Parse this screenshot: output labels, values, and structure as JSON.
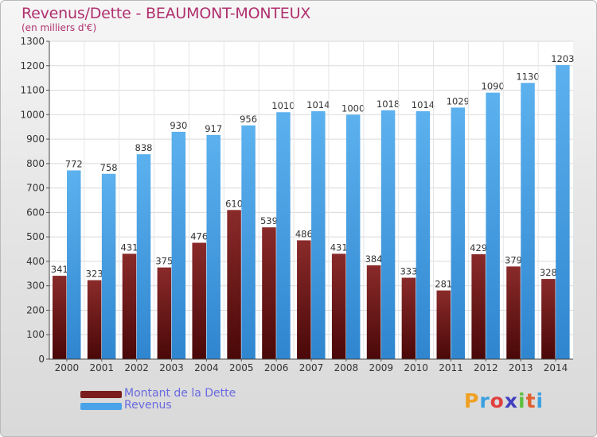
{
  "title": "Revenus/Dette - BEAUMONT-MONTEUX",
  "subtitle": "(en milliers d'€)",
  "logo": {
    "letters": [
      "P",
      "r",
      "o",
      "x",
      "i",
      "t",
      "i"
    ],
    "colors": [
      "#f0a020",
      "#3aa0e0",
      "#e04040",
      "#4040c0",
      "#60c040",
      "#e06030",
      "#3aa0e0"
    ]
  },
  "legend": [
    {
      "label": "Montant de la Dette",
      "color": "#7a1e1e"
    },
    {
      "label": "Revenus",
      "color": "#4aa3e8"
    }
  ],
  "chart_data": {
    "type": "bar",
    "categories": [
      "2000",
      "2001",
      "2002",
      "2003",
      "2004",
      "2005",
      "2006",
      "2007",
      "2008",
      "2009",
      "2010",
      "2011",
      "2012",
      "2013",
      "2014"
    ],
    "series": [
      {
        "name": "Montant de la Dette",
        "color": "#7a1e1e",
        "values": [
          341,
          323,
          431,
          375,
          476,
          610,
          539,
          486,
          431,
          384,
          333,
          281,
          429,
          379,
          328
        ]
      },
      {
        "name": "Revenus",
        "color": "#4aa3e8",
        "values": [
          772,
          758,
          838,
          930,
          917,
          956,
          1010,
          1014,
          1000,
          1018,
          1014,
          1029,
          1090,
          1130,
          1203
        ]
      }
    ],
    "yticks": [
      0,
      100,
      200,
      300,
      400,
      500,
      600,
      700,
      800,
      900,
      1000,
      1100,
      1200,
      1300
    ],
    "ylim": [
      0,
      1300
    ],
    "grid": true,
    "legend_position": "bottom-left"
  }
}
